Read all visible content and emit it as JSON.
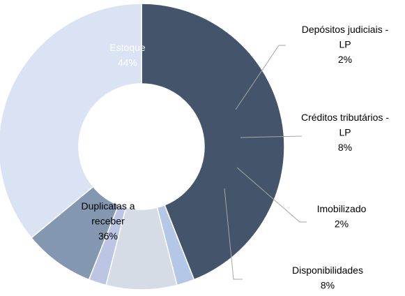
{
  "chart_data": {
    "type": "donut",
    "categories": [
      "Estoque",
      "Depósitos judiciais - LP",
      "Créditos tributários - LP",
      "Imobilizado",
      "Disponibilidades",
      "Duplicatas a receber"
    ],
    "values": [
      44,
      2,
      8,
      2,
      8,
      36
    ],
    "value_labels": [
      "44%",
      "2%",
      "8%",
      "2%",
      "8%",
      "36%"
    ],
    "colors": [
      "#44546a",
      "#b4c7e7",
      "#d6dce5",
      "#bcc6e4",
      "#8497b0",
      "#dae3f3"
    ]
  }
}
